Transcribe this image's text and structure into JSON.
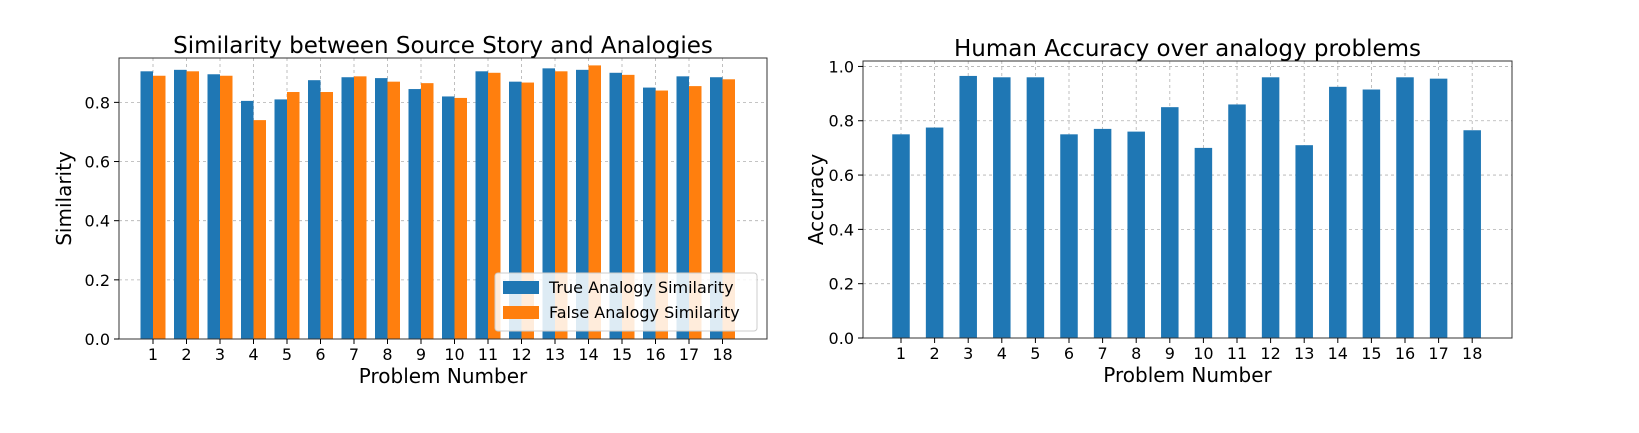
{
  "chart_data": [
    {
      "type": "bar",
      "title": "Similarity between Source Story and Analogies",
      "xlabel": "Problem Number",
      "ylabel": "Similarity",
      "ylim": [
        0,
        0.95
      ],
      "yticks": [
        "0.0",
        "0.2",
        "0.4",
        "0.6",
        "0.8"
      ],
      "grid": true,
      "legend": "bottom-right",
      "categories": [
        "1",
        "2",
        "3",
        "4",
        "5",
        "6",
        "7",
        "8",
        "9",
        "10",
        "11",
        "12",
        "13",
        "14",
        "15",
        "16",
        "17",
        "18"
      ],
      "series": [
        {
          "name": "True Analogy Similarity",
          "color": "#1f77b4",
          "values": [
            0.905,
            0.91,
            0.895,
            0.805,
            0.81,
            0.875,
            0.885,
            0.882,
            0.845,
            0.82,
            0.905,
            0.87,
            0.915,
            0.91,
            0.9,
            0.85,
            0.888,
            0.885
          ]
        },
        {
          "name": "False Analogy Similarity",
          "color": "#ff7f0e",
          "values": [
            0.89,
            0.905,
            0.89,
            0.74,
            0.835,
            0.835,
            0.888,
            0.87,
            0.865,
            0.815,
            0.9,
            0.867,
            0.905,
            0.925,
            0.893,
            0.84,
            0.855,
            0.878
          ]
        }
      ]
    },
    {
      "type": "bar",
      "title": "Human Accuracy over analogy problems",
      "xlabel": "Problem Number",
      "ylabel": "Accuracy",
      "ylim": [
        0,
        1.02
      ],
      "yticks": [
        "0.0",
        "0.2",
        "0.4",
        "0.6",
        "0.8",
        "1.0"
      ],
      "grid": true,
      "categories": [
        "1",
        "2",
        "3",
        "4",
        "5",
        "6",
        "7",
        "8",
        "9",
        "10",
        "11",
        "12",
        "13",
        "14",
        "15",
        "16",
        "17",
        "18"
      ],
      "series": [
        {
          "color": "#1f77b4",
          "values": [
            0.75,
            0.775,
            0.965,
            0.96,
            0.96,
            0.75,
            0.77,
            0.76,
            0.85,
            0.7,
            0.86,
            0.96,
            0.71,
            0.925,
            0.915,
            0.96,
            0.955,
            0.765
          ]
        }
      ]
    }
  ]
}
